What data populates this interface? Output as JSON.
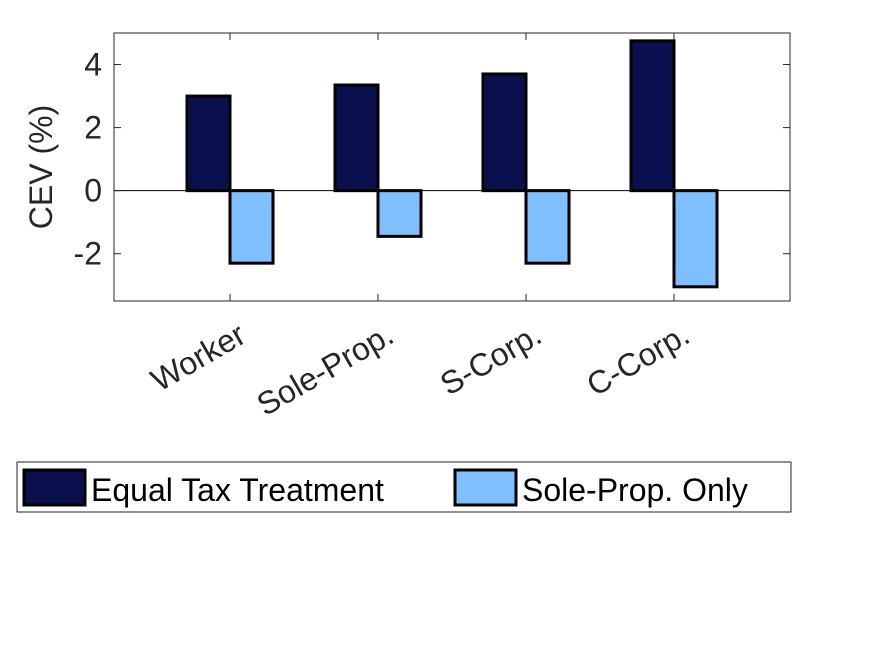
{
  "chart_data": {
    "type": "bar",
    "categories": [
      "Worker",
      "Sole-Prop.",
      "S-Corp.",
      "C-Corp."
    ],
    "series": [
      {
        "name": "Equal Tax Treatment",
        "values": [
          3.0,
          3.35,
          3.7,
          4.75
        ],
        "color": "#0a0f4d"
      },
      {
        "name": "Sole-Prop. Only",
        "values": [
          -2.3,
          -1.45,
          -2.3,
          -3.05
        ],
        "color": "#80bfff"
      }
    ],
    "title": "",
    "xlabel": "",
    "ylabel": "CEV (%)",
    "ylim": [
      -3.5,
      5
    ],
    "yticks": [
      -2,
      0,
      2,
      4
    ],
    "ytick_labels": [
      "-2",
      "0",
      "2",
      "4"
    ],
    "grid": false,
    "legend_position": "bottom",
    "zero_line": true
  }
}
